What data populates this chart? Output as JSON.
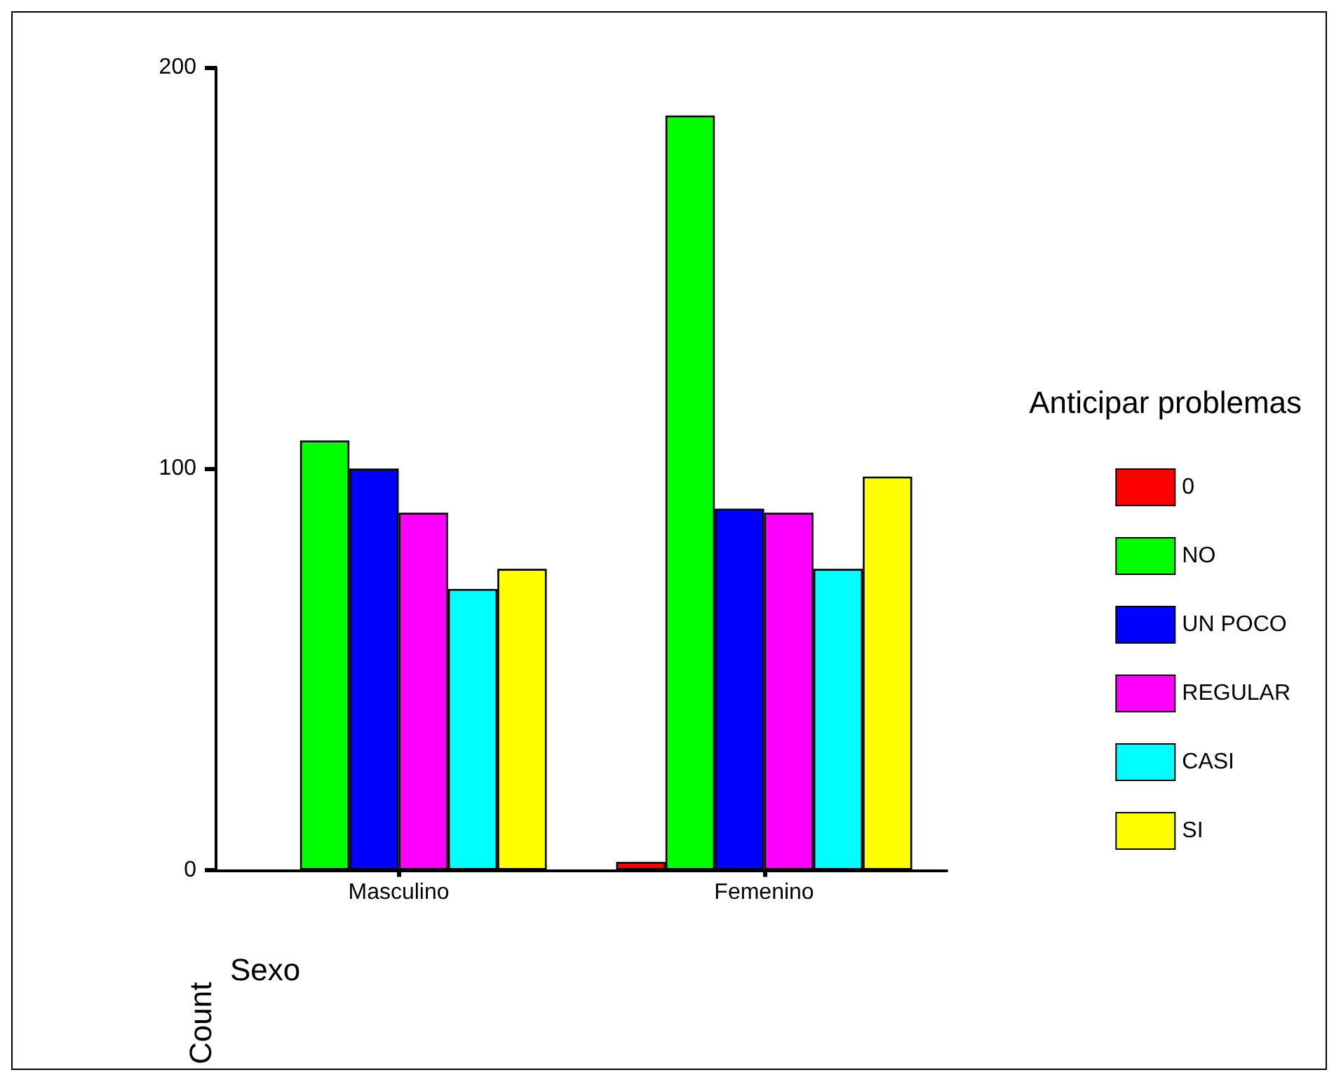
{
  "chart_data": {
    "type": "bar",
    "xlabel": "Sexo",
    "ylabel": "Count",
    "legend_title": "Anticipar problemas",
    "categories": [
      "Masculino",
      "Femenino"
    ],
    "series": [
      {
        "name": "0",
        "color": "#ff0000",
        "values": [
          null,
          2
        ]
      },
      {
        "name": "NO",
        "color": "#00ff00",
        "values": [
          107,
          188
        ]
      },
      {
        "name": "UN POCO",
        "color": "#0000ff",
        "values": [
          100,
          90
        ]
      },
      {
        "name": "REGULAR",
        "color": "#ff00ff",
        "values": [
          89,
          89
        ]
      },
      {
        "name": "CASI",
        "color": "#00ffff",
        "values": [
          70,
          75
        ]
      },
      {
        "name": "SI",
        "color": "#ffff00",
        "values": [
          75,
          98
        ]
      }
    ],
    "ylim": [
      0,
      200
    ],
    "yticks": [
      0,
      100,
      200
    ],
    "grid": false,
    "legend": "right"
  }
}
